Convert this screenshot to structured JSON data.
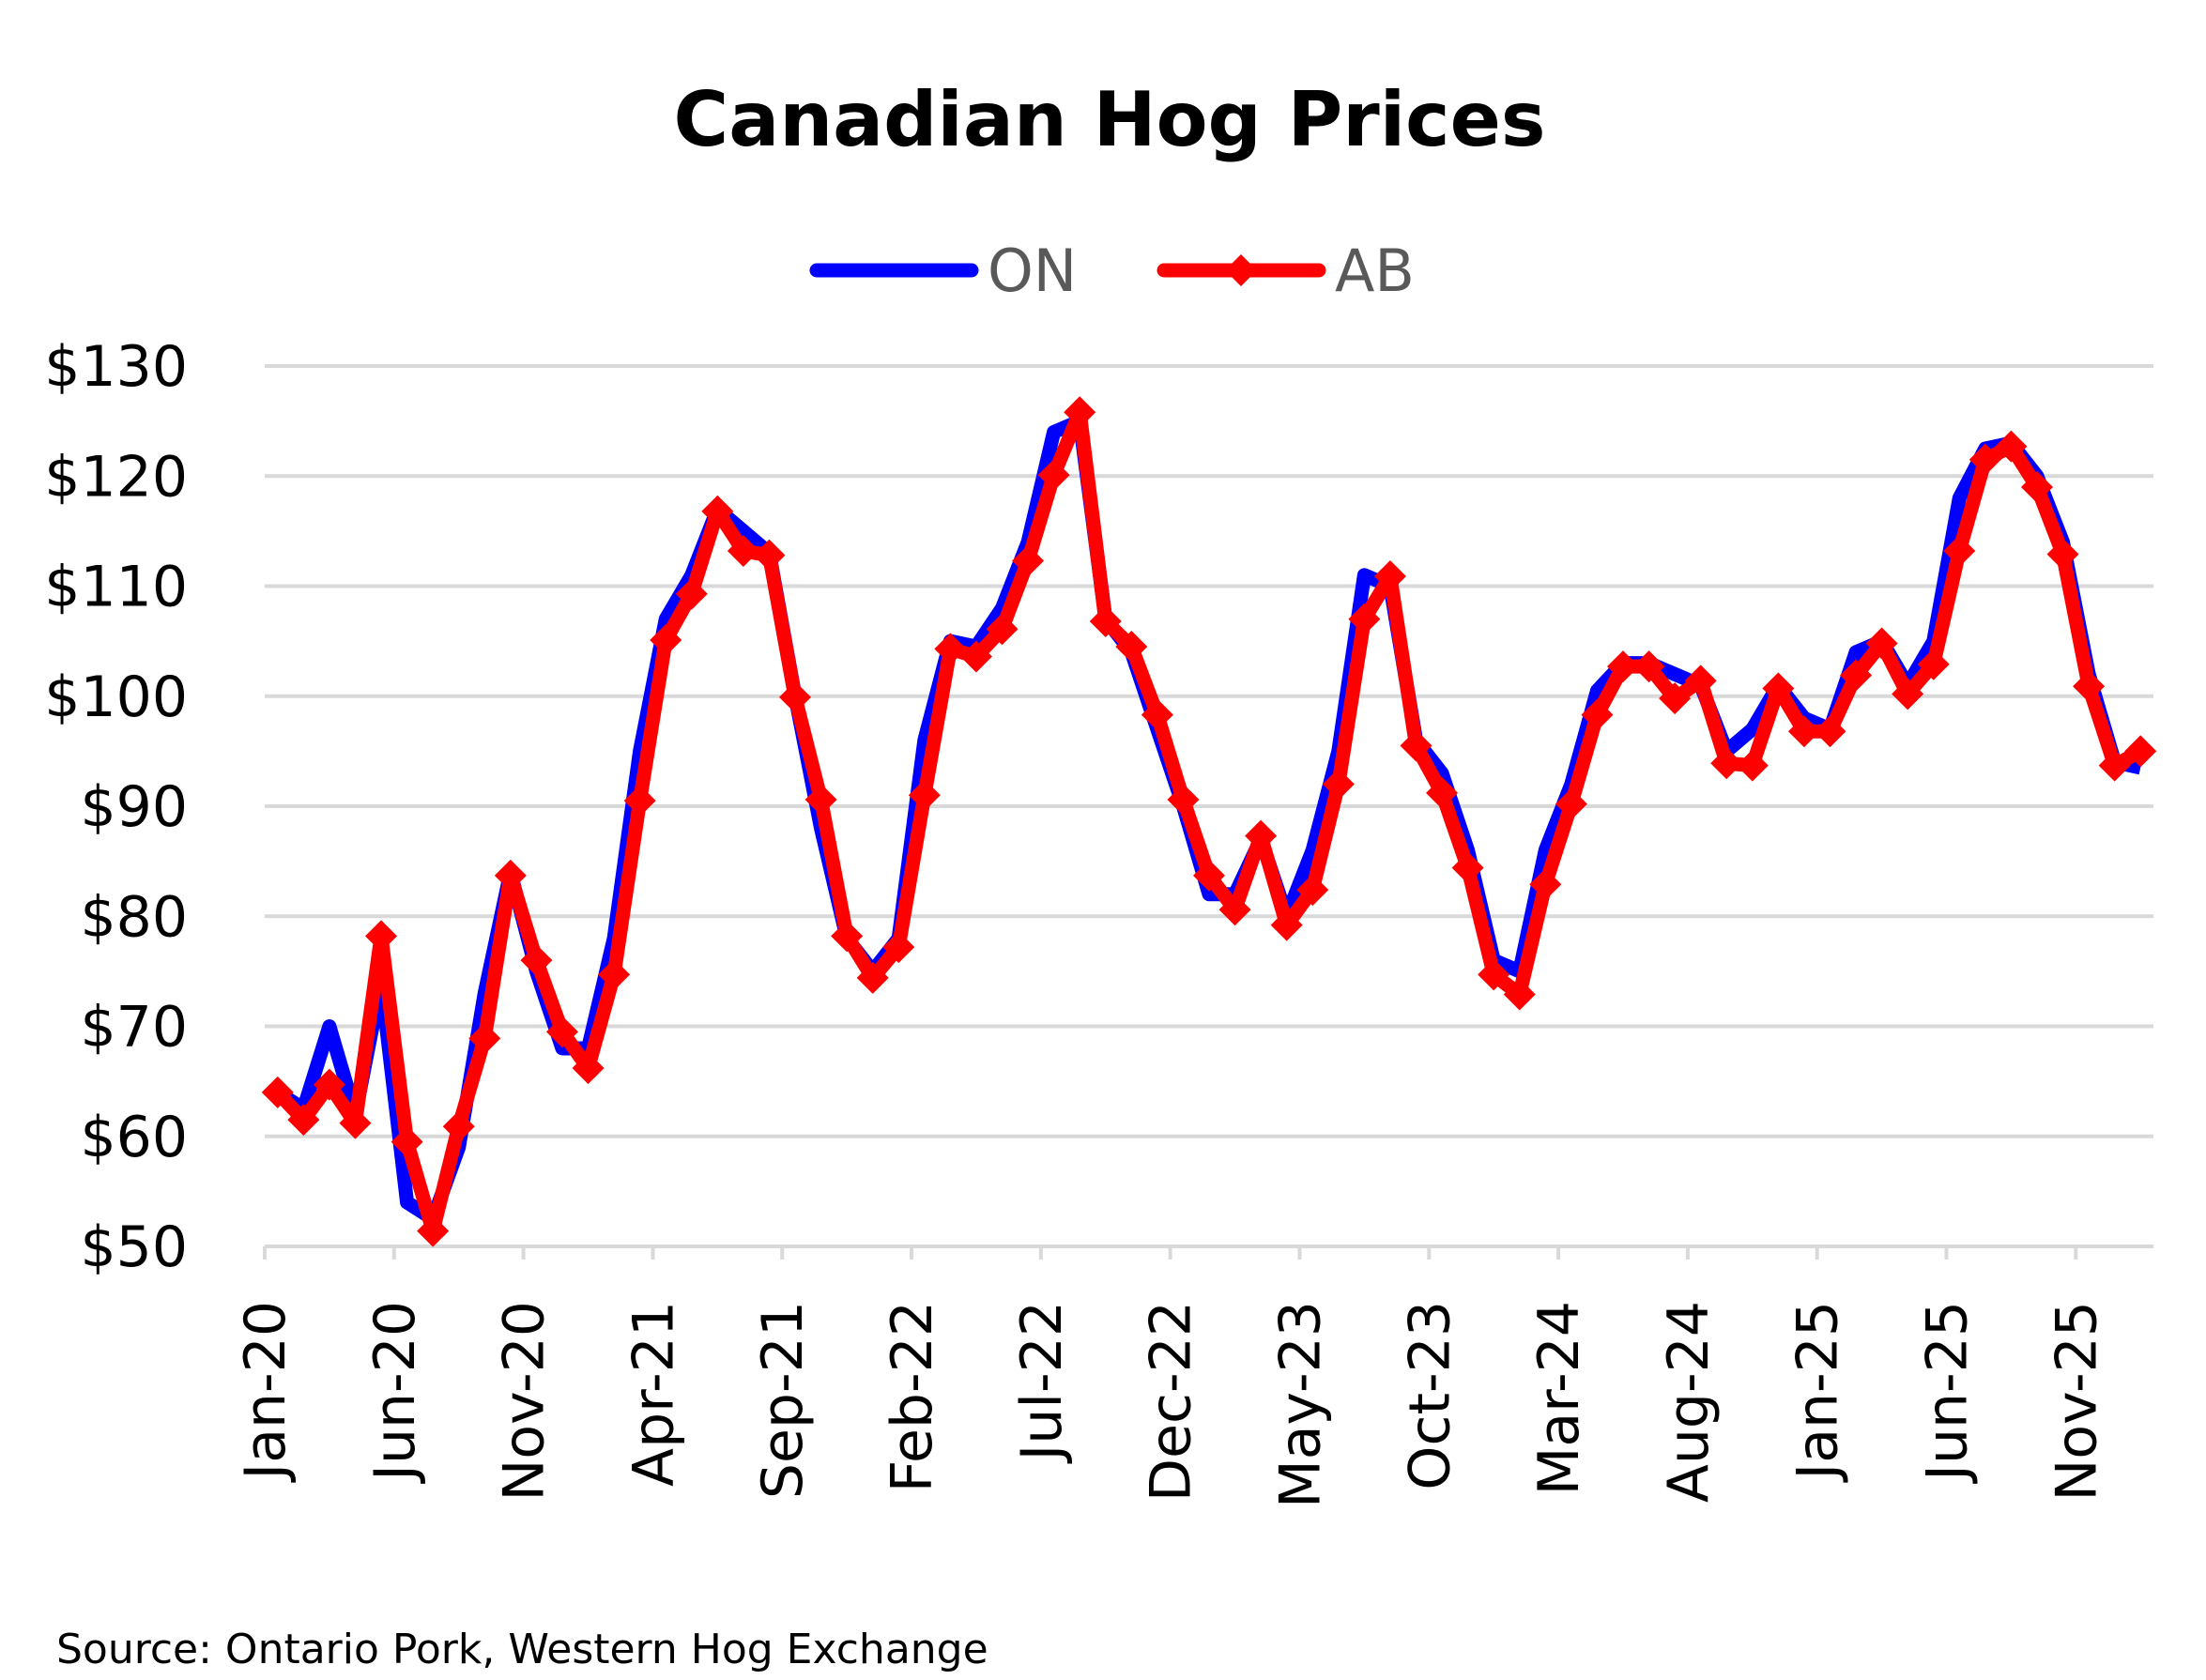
{
  "chart_data": {
    "type": "line",
    "title": "Canadian Hog Prices",
    "source": "Source: Ontario Pork, Western Hog Exchange",
    "xlabel": "",
    "ylabel": "",
    "ylim": [
      50,
      130
    ],
    "yticks": [
      50,
      60,
      70,
      80,
      90,
      100,
      110,
      120,
      130
    ],
    "ytick_labels": [
      "$50",
      "$60",
      "$70",
      "$80",
      "$90",
      "$100",
      "$110",
      "$120",
      "$130"
    ],
    "grid": true,
    "legend_placement": "top",
    "x_start": "Jan-20",
    "x_end": "Jan-26",
    "xtick_labels": [
      "Jan-20",
      "Jun-20",
      "Nov-20",
      "Apr-21",
      "Sep-21",
      "Feb-22",
      "Jul-22",
      "Dec-22",
      "May-23",
      "Oct-23",
      "Mar-24",
      "Aug-24",
      "Jan-25",
      "Jun-25",
      "Nov-25"
    ],
    "xtick_every_months": 5,
    "series": [
      {
        "name": "ON",
        "color": "#0000FF",
        "marker": "none",
        "values": [
          64,
          62.5,
          70,
          62,
          74,
          54,
          52.5,
          59,
          73,
          84,
          75,
          68,
          68,
          78,
          95,
          107,
          111,
          117,
          115,
          113,
          100,
          88,
          78,
          75,
          78,
          96,
          105,
          104.5,
          108,
          114,
          124,
          125,
          107,
          104,
          97,
          90,
          82,
          82,
          87,
          80,
          86,
          95,
          111,
          110,
          96,
          93,
          86,
          76,
          75,
          86,
          92,
          100.5,
          103,
          103,
          102,
          101,
          95,
          97,
          101,
          98,
          97,
          104,
          105,
          101,
          105,
          118,
          122.5,
          123,
          120,
          114,
          102,
          94,
          93.5
        ]
      },
      {
        "name": "AB",
        "color": "#FF0000",
        "marker": "diamond",
        "values": [
          64,
          61.5,
          64.7,
          61.2,
          78.2,
          59.5,
          51.4,
          60.9,
          68.9,
          83.7,
          76,
          69.5,
          66.2,
          74.7,
          90.5,
          105.1,
          109.3,
          116.8,
          113.2,
          112.8,
          99.9,
          90.6,
          78.2,
          74.4,
          77.2,
          91,
          104.3,
          103.6,
          106.1,
          112.3,
          120.1,
          125.8,
          106.8,
          104.5,
          98.3,
          90.6,
          83.7,
          80.6,
          87.3,
          79.2,
          82.4,
          92,
          107,
          110.9,
          95.5,
          91.2,
          84.4,
          74.7,
          72.9,
          82.9,
          90.2,
          98.3,
          102.7,
          102.7,
          99.8,
          101.4,
          93.9,
          93.7,
          100.7,
          96.8,
          96.8,
          101.9,
          104.8,
          100.2,
          102.9,
          113.2,
          121.5,
          122.7,
          119,
          112.9,
          100.9,
          93.7,
          95
        ]
      }
    ]
  }
}
